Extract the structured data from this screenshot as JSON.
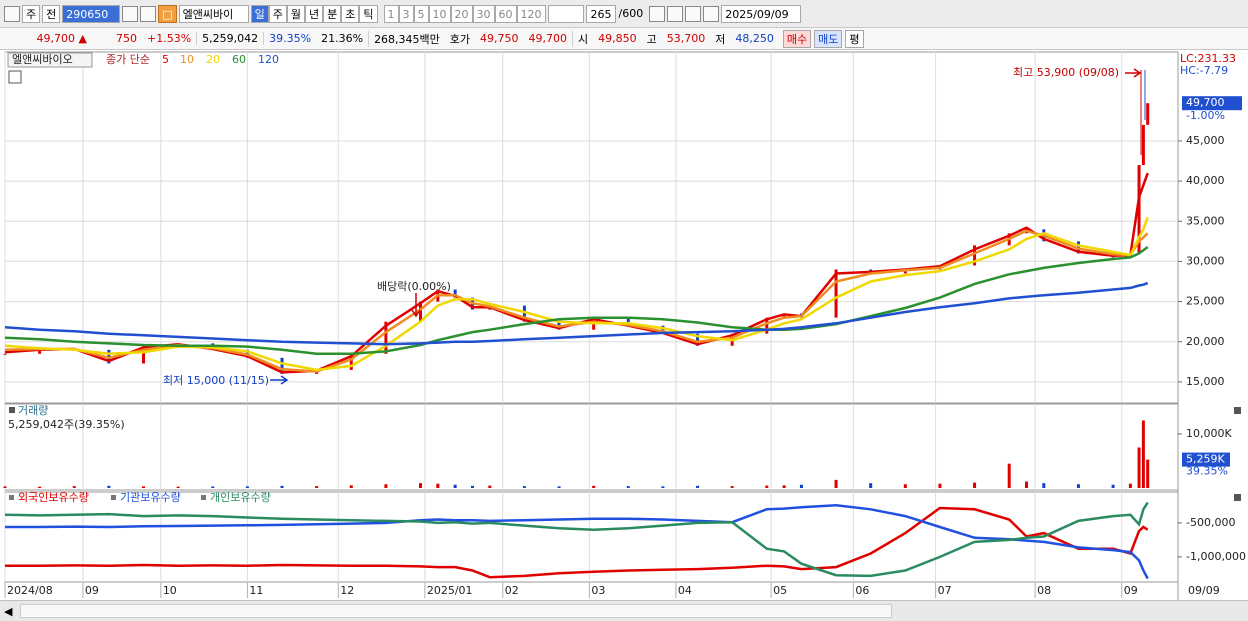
{
  "toolbar": {
    "market": "주",
    "scope": "전",
    "code": "290650",
    "name": "엘앤씨바이",
    "periods": [
      "일",
      "주",
      "월",
      "년",
      "분",
      "초",
      "틱"
    ],
    "intervals": [
      "1",
      "3",
      "5",
      "10",
      "20",
      "30",
      "60",
      "120"
    ],
    "count": "265",
    "max": "/600",
    "date": "2025/09/09"
  },
  "quote_bar": {
    "price": "49,700 ▲",
    "change": "750",
    "change_pct": "+1.53%",
    "volume": "5,259,042",
    "turnover_pct": "39.35%",
    "other_pct": "21.36%",
    "amount": "268,345백만",
    "bid_label": "호가",
    "ask": "49,750",
    "bid": "49,700",
    "open_label": "시",
    "open": "49,850",
    "high_label": "고",
    "high": "53,700",
    "low_label": "저",
    "low": "48,250",
    "buy": "매수",
    "sell": "매도",
    "eval": "평"
  },
  "chart_data": [
    {
      "type": "candlestick",
      "title": "엘앤씨바이오",
      "ma_label": "종가 단순",
      "x": [
        0,
        8,
        16,
        24,
        32,
        40,
        48,
        56,
        64,
        72,
        80,
        88,
        96,
        100,
        104,
        108,
        112,
        120,
        128,
        136,
        144,
        152,
        160,
        168,
        176,
        180,
        184,
        192,
        200,
        208,
        216,
        224,
        232,
        236,
        240,
        248,
        256,
        260,
        262,
        263,
        264
      ],
      "close": {
        "up_color": "#e00000",
        "down_color": "#1040d0",
        "values": [
          18500,
          19000,
          19000,
          17300,
          19500,
          19800,
          19000,
          18000,
          16000,
          16500,
          18500,
          22500,
          25000,
          26500,
          25500,
          24000,
          24500,
          22500,
          21500,
          23000,
          22000,
          21000,
          19500,
          21000,
          23000,
          23500,
          23000,
          29000,
          28500,
          29000,
          29500,
          32000,
          33500,
          34000,
          32500,
          31000,
          30500,
          31000,
          42000,
          47000,
          49700
        ],
        "value_labels": [
          null,
          null,
          null,
          null,
          null,
          null,
          null,
          null,
          null,
          null,
          null,
          null,
          null,
          null,
          null,
          null,
          null,
          null,
          null,
          null,
          null,
          null,
          null,
          null,
          null,
          null,
          null,
          null,
          null,
          null,
          null,
          null,
          null,
          null,
          null,
          null,
          null,
          null,
          null,
          null,
          "49,700"
        ]
      },
      "series": [
        {
          "name": "5",
          "color": "#e00000",
          "values": [
            18700,
            19000,
            19100,
            17600,
            19300,
            19700,
            19100,
            18200,
            16200,
            16400,
            18200,
            22000,
            24800,
            26300,
            25700,
            24300,
            24300,
            22700,
            21700,
            22800,
            22000,
            21100,
            19700,
            20800,
            22800,
            23400,
            23200,
            28500,
            28700,
            29000,
            29400,
            31500,
            33200,
            34200,
            32800,
            31200,
            30700,
            30800,
            38000,
            39500,
            41000
          ]
        },
        {
          "name": "10",
          "color": "#f08c20",
          "values": [
            19000,
            19100,
            19100,
            18000,
            19000,
            19600,
            19200,
            18400,
            16600,
            16300,
            17800,
            21200,
            24000,
            25800,
            25800,
            24800,
            24400,
            23000,
            21900,
            22500,
            22100,
            21300,
            20000,
            20500,
            22300,
            23000,
            23200,
            27500,
            28500,
            28900,
            29200,
            31000,
            32800,
            33800,
            33200,
            31600,
            30900,
            30800,
            32500,
            33000,
            33500
          ]
        },
        {
          "name": "20",
          "color": "#f0d800",
          "values": [
            19500,
            19200,
            19000,
            18500,
            18700,
            19400,
            19300,
            18800,
            17300,
            16500,
            17000,
            19500,
            22500,
            24500,
            25300,
            25300,
            24700,
            23700,
            22500,
            22300,
            22300,
            21700,
            20700,
            20200,
            21500,
            22300,
            22800,
            25500,
            27500,
            28300,
            28800,
            30000,
            31500,
            32800,
            33500,
            32000,
            31200,
            30800,
            33000,
            34000,
            35500
          ]
        },
        {
          "name": "60",
          "color": "#2a9030",
          "values": [
            20500,
            20300,
            20000,
            19800,
            19600,
            19500,
            19500,
            19400,
            19000,
            18500,
            18500,
            18800,
            19600,
            20200,
            20700,
            21200,
            21500,
            22200,
            22800,
            23000,
            23000,
            22800,
            22400,
            21800,
            21500,
            21500,
            21600,
            22200,
            23200,
            24200,
            25500,
            27200,
            28400,
            28800,
            29200,
            29800,
            30300,
            30500,
            31000,
            31400,
            31800
          ]
        },
        {
          "name": "120",
          "color": "#2050d0",
          "values": [
            21800,
            21500,
            21300,
            21000,
            20800,
            20600,
            20400,
            20200,
            20000,
            19900,
            19800,
            19700,
            19800,
            19900,
            20000,
            20000,
            20100,
            20300,
            20500,
            20700,
            20900,
            21100,
            21200,
            21300,
            21500,
            21600,
            21800,
            22300,
            23000,
            23700,
            24300,
            24800,
            25400,
            25600,
            25800,
            26100,
            26500,
            26700,
            27000,
            27100,
            27300
          ]
        }
      ],
      "xlim": [
        0,
        271
      ],
      "xticks": [
        {
          "value": 0,
          "label": "2024/08"
        },
        {
          "value": 18,
          "label": "09"
        },
        {
          "value": 36,
          "label": "10"
        },
        {
          "value": 56,
          "label": "11"
        },
        {
          "value": 77,
          "label": "12"
        },
        {
          "value": 97,
          "label": "2025/01"
        },
        {
          "value": 115,
          "label": "02"
        },
        {
          "value": 135,
          "label": "03"
        },
        {
          "value": 155,
          "label": "04"
        },
        {
          "value": 177,
          "label": "05"
        },
        {
          "value": 196,
          "label": "06"
        },
        {
          "value": 215,
          "label": "07"
        },
        {
          "value": 238,
          "label": "08"
        },
        {
          "value": 258,
          "label": "09"
        }
      ],
      "x_cursor_label": "09/09",
      "ylim": [
        12500,
        55700
      ],
      "yticks": [
        {
          "value": 15000,
          "label": "15,000"
        },
        {
          "value": 20000,
          "label": "20,000"
        },
        {
          "value": 25000,
          "label": "25,000"
        },
        {
          "value": 30000,
          "label": "30,000"
        },
        {
          "value": 35000,
          "label": "35,000"
        },
        {
          "value": 40000,
          "label": "40,000"
        },
        {
          "value": 45000,
          "label": "45,000"
        }
      ],
      "grid": true,
      "annotations": {
        "high": "최고 53,900 (09/08)",
        "low": "최저 15,000 (11/15)",
        "dividend": "배당락(0.00%)",
        "lc": "LC:231.33",
        "hc": "HC:-7.79",
        "change": "-1.00%"
      }
    },
    {
      "type": "bar",
      "title": "거래량",
      "subtitle": "5,259,042주(39.35%)",
      "x": [
        0,
        8,
        16,
        24,
        32,
        40,
        48,
        56,
        64,
        72,
        80,
        88,
        96,
        100,
        104,
        108,
        112,
        120,
        128,
        136,
        144,
        152,
        160,
        168,
        176,
        180,
        184,
        192,
        200,
        208,
        216,
        224,
        232,
        236,
        240,
        248,
        256,
        260,
        262,
        263,
        264
      ],
      "values": [
        300,
        250,
        350,
        400,
        300,
        250,
        280,
        300,
        400,
        350,
        500,
        700,
        900,
        800,
        600,
        400,
        450,
        350,
        300,
        400,
        350,
        300,
        400,
        350,
        450,
        500,
        600,
        1500,
        900,
        700,
        800,
        1000,
        4500,
        1200,
        900,
        700,
        600,
        800,
        7500,
        12500,
        5259
      ],
      "value_labels": [
        null,
        null,
        null,
        null,
        null,
        null,
        null,
        null,
        null,
        null,
        null,
        null,
        null,
        null,
        null,
        null,
        null,
        null,
        null,
        null,
        null,
        null,
        null,
        null,
        null,
        null,
        null,
        null,
        null,
        null,
        null,
        null,
        null,
        null,
        null,
        null,
        null,
        null,
        null,
        null,
        "5,259K"
      ],
      "ratio_label": "39.35%",
      "up_color": "#e00000",
      "down_color": "#1040d0",
      "ylim": [
        0,
        15550
      ],
      "yticks": [
        {
          "value": 10000,
          "label": "10,000K"
        }
      ]
    },
    {
      "type": "line",
      "x": [
        0,
        8,
        16,
        24,
        32,
        40,
        48,
        56,
        64,
        72,
        80,
        88,
        96,
        100,
        104,
        108,
        112,
        120,
        128,
        136,
        144,
        152,
        160,
        168,
        176,
        180,
        184,
        192,
        200,
        208,
        216,
        224,
        232,
        236,
        240,
        248,
        256,
        260,
        262,
        263,
        264
      ],
      "series": [
        {
          "name": "외국인보유수량",
          "color": "#e00000",
          "values": [
            -1130000,
            -1130000,
            -1125000,
            -1130000,
            -1120000,
            -1130000,
            -1125000,
            -1130000,
            -1120000,
            -1125000,
            -1130000,
            -1130000,
            -1140000,
            -1150000,
            -1150000,
            -1200000,
            -1300000,
            -1280000,
            -1240000,
            -1220000,
            -1200000,
            -1190000,
            -1180000,
            -1160000,
            -1130000,
            -1140000,
            -1180000,
            -1150000,
            -950000,
            -650000,
            -280000,
            -300000,
            -450000,
            -700000,
            -650000,
            -880000,
            -880000,
            -950000,
            -620000,
            -560000,
            -600000
          ]
        },
        {
          "name": "기관보유수량",
          "color": "#2050e0",
          "values": [
            -560000,
            -560000,
            -555000,
            -560000,
            -550000,
            -545000,
            -540000,
            -535000,
            -530000,
            -520000,
            -510000,
            -500000,
            -460000,
            -450000,
            -460000,
            -460000,
            -470000,
            -460000,
            -450000,
            -440000,
            -440000,
            -450000,
            -470000,
            -490000,
            -300000,
            -290000,
            -270000,
            -240000,
            -300000,
            -400000,
            -560000,
            -720000,
            -740000,
            -760000,
            -780000,
            -860000,
            -900000,
            -930000,
            -1050000,
            -1200000,
            -1320000
          ]
        },
        {
          "name": "개인보유수량",
          "color": "#2a8a60",
          "values": [
            -380000,
            -390000,
            -380000,
            -370000,
            -400000,
            -390000,
            -400000,
            -420000,
            -440000,
            -450000,
            -460000,
            -470000,
            -480000,
            -500000,
            -490000,
            -510000,
            -500000,
            -540000,
            -580000,
            -600000,
            -580000,
            -540000,
            -500000,
            -490000,
            -880000,
            -920000,
            -1100000,
            -1270000,
            -1280000,
            -1200000,
            -1000000,
            -780000,
            -750000,
            -720000,
            -700000,
            -470000,
            -400000,
            -380000,
            -520000,
            -300000,
            -200000
          ]
        }
      ],
      "ylim": [
        -1370000,
        -45000
      ],
      "yticks": [
        {
          "value": -500000,
          "label": "-500,000"
        },
        {
          "value": -1000000,
          "label": "-1,000,000"
        }
      ]
    }
  ]
}
